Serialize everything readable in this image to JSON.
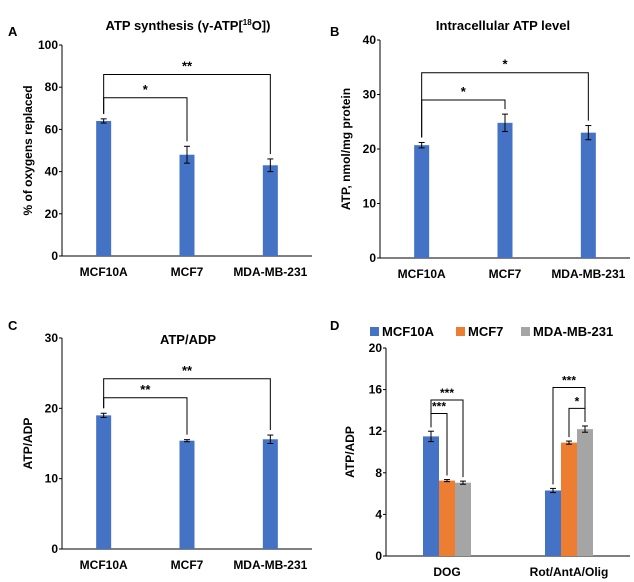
{
  "colors": {
    "bar": "#4472C4",
    "orange": "#ED7D31",
    "gray": "#A5A5A5",
    "axis": "#000000"
  },
  "chart_data": [
    {
      "panel": "A",
      "type": "bar",
      "title": "ATP synthesis (γ-ATP[¹⁸O])",
      "title_main": "ATP synthesis (γ-ATP[",
      "title_sup": "18",
      "title_end": "O])",
      "ylabel": "% of oxygens replaced",
      "xlabel": "",
      "ylim": [
        0,
        100
      ],
      "yticks": [
        0,
        20,
        40,
        60,
        80,
        100
      ],
      "categories": [
        "MCF10A",
        "MCF7",
        "MDA-MB-231"
      ],
      "values": [
        64,
        48,
        43
      ],
      "errors": [
        1,
        4,
        3
      ],
      "significance": [
        {
          "from": 0,
          "to": 1,
          "y": 75,
          "label": "*"
        },
        {
          "from": 0,
          "to": 2,
          "y": 86,
          "label": "**"
        }
      ]
    },
    {
      "panel": "B",
      "type": "bar",
      "title": "Intracellular ATP level",
      "ylabel": "ATP, nmol/mg protein",
      "xlabel": "",
      "ylim": [
        0,
        40
      ],
      "yticks": [
        0,
        10,
        20,
        30,
        40
      ],
      "categories": [
        "MCF10A",
        "MCF7",
        "MDA-MB-231"
      ],
      "values": [
        20.7,
        24.8,
        23
      ],
      "errors": [
        0.5,
        1.6,
        1.3
      ],
      "significance": [
        {
          "from": 0,
          "to": 1,
          "y": 29,
          "label": "*"
        },
        {
          "from": 0,
          "to": 2,
          "y": 34,
          "label": "*"
        }
      ]
    },
    {
      "panel": "C",
      "type": "bar",
      "title": "ATP/ADP",
      "ylabel": "ATP/ADP",
      "xlabel": "",
      "ylim": [
        0,
        30
      ],
      "yticks": [
        0,
        10,
        20,
        30
      ],
      "categories": [
        "MCF10A",
        "MCF7",
        "MDA-MB-231"
      ],
      "values": [
        19,
        15.4,
        15.6
      ],
      "errors": [
        0.3,
        0.15,
        0.6
      ],
      "significance": [
        {
          "from": 0,
          "to": 1,
          "y": 21.5,
          "label": "**"
        },
        {
          "from": 0,
          "to": 2,
          "y": 24.2,
          "label": "**"
        }
      ]
    },
    {
      "panel": "D",
      "type": "bar",
      "title": "",
      "ylabel": "ATP/ADP",
      "xlabel": "",
      "ylim": [
        0,
        20
      ],
      "yticks": [
        0,
        4,
        8,
        12,
        16,
        20
      ],
      "categories": [
        "DOG",
        "Rot/AntA/Olig"
      ],
      "series": [
        {
          "name": "MCF10A",
          "color": "#4472C4",
          "values": [
            11.5,
            6.3
          ],
          "errors": [
            0.5,
            0.2
          ]
        },
        {
          "name": "MCF7",
          "color": "#ED7D31",
          "values": [
            7.25,
            10.9
          ],
          "errors": [
            0.1,
            0.15
          ]
        },
        {
          "name": "MDA-MB-231",
          "color": "#A5A5A5",
          "values": [
            7.05,
            12.2
          ],
          "errors": [
            0.15,
            0.3
          ]
        }
      ],
      "legend_position": "top",
      "significance": [
        {
          "group": 0,
          "from": 0,
          "to": 1,
          "y": 13.7,
          "label": "***"
        },
        {
          "group": 0,
          "from": 0,
          "to": 2,
          "y": 15,
          "label": "***"
        },
        {
          "group": 1,
          "from": 0,
          "to": 2,
          "y": 16.2,
          "label": "***"
        },
        {
          "group": 1,
          "from": 1,
          "to": 2,
          "y": 14.2,
          "label": "*"
        }
      ]
    }
  ]
}
